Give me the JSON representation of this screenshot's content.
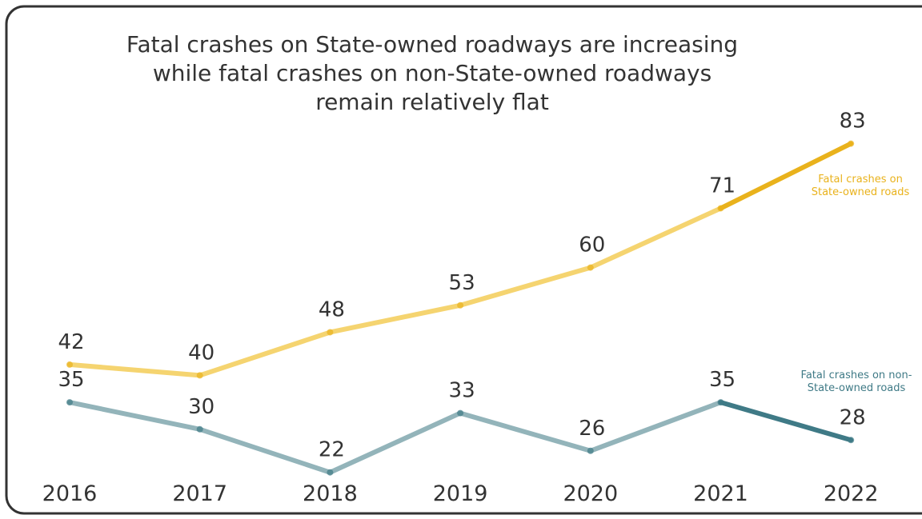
{
  "chart_data": {
    "type": "line",
    "title": "Fatal crashes on State-owned roadways are increasing while fatal crashes on non-State-owned roadways remain relatively flat",
    "categories": [
      "2016",
      "2017",
      "2018",
      "2019",
      "2020",
      "2021",
      "2022"
    ],
    "series": [
      {
        "name": "Fatal crashes on State-owned roads",
        "color": "#f5d470",
        "highlight_color": "#e9b21c",
        "values": [
          42,
          40,
          48,
          53,
          60,
          71,
          83
        ]
      },
      {
        "name": "Fatal crashes on non-State-owned roads",
        "color": "#93b4ba",
        "highlight_color": "#3f7a86",
        "values": [
          35,
          30,
          22,
          33,
          26,
          35,
          28
        ]
      }
    ]
  }
}
